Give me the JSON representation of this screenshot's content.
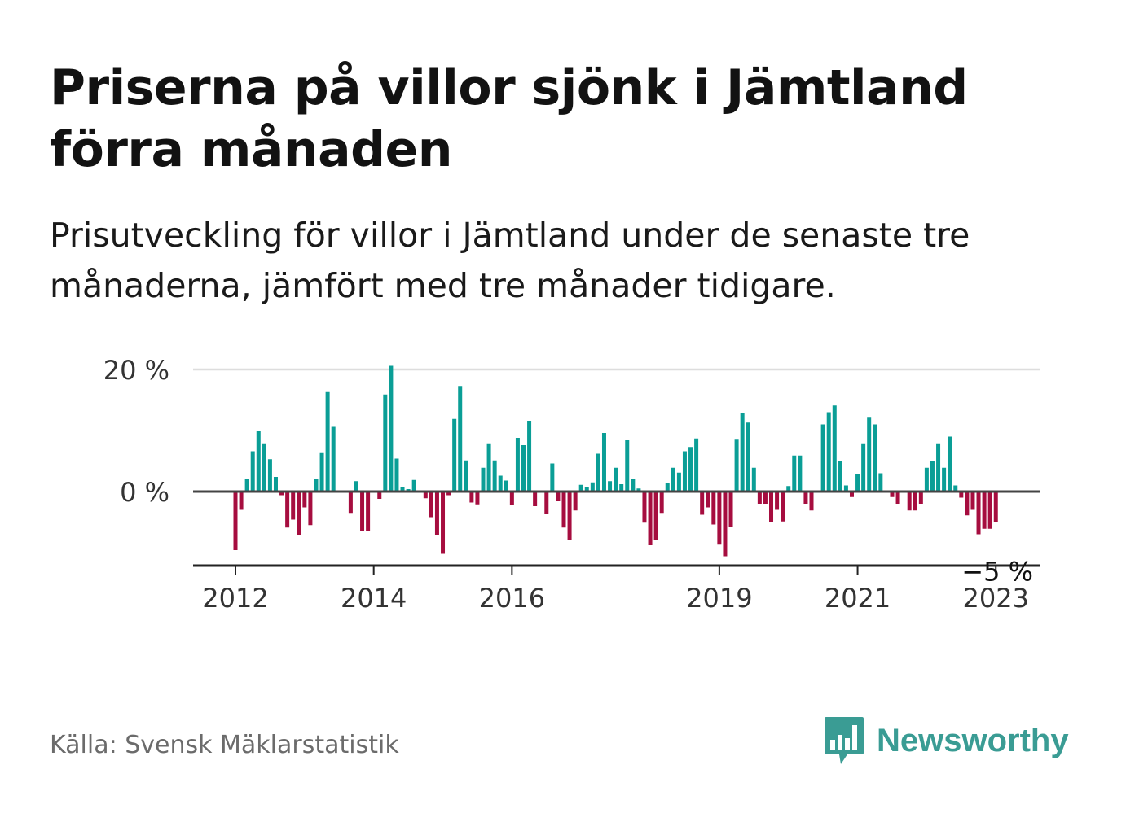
{
  "title": "Priserna på villor sjönk i Jämtland förra månaden",
  "subtitle": "Prisutveckling för villor i Jämtland under de senaste tre månaderna, jämfört med tre månader tidigare.",
  "source": "Källa: Svensk Mäklarstatistik",
  "logo": {
    "text": "Newsworthy",
    "icon": "bar-chart-speech-bubble-icon"
  },
  "colors": {
    "positive": "#0a9e96",
    "negative": "#a60d3f",
    "grid": "#dddddd",
    "axis": "#444444",
    "logo": "#3a9c94"
  },
  "chart_data": {
    "type": "bar",
    "title": "",
    "xlabel": "",
    "ylabel": "",
    "ylim": [
      -12,
      20
    ],
    "y_ticks": [
      {
        "value": 0,
        "label": "0 %"
      },
      {
        "value": 20,
        "label": "20 %"
      }
    ],
    "x_ticks": [
      {
        "index": 0,
        "label": "2012"
      },
      {
        "index": 24,
        "label": "2014"
      },
      {
        "index": 48,
        "label": "2016"
      },
      {
        "index": 84,
        "label": "2019"
      },
      {
        "index": 108,
        "label": "2021"
      },
      {
        "index": 132,
        "label": "2023"
      }
    ],
    "end_label": "−5 %",
    "start": "2012-01",
    "values": [
      -9.6,
      -3.0,
      2.1,
      6.6,
      10.0,
      7.9,
      5.3,
      2.4,
      -0.6,
      -5.9,
      -4.6,
      -7.1,
      -2.6,
      -5.5,
      2.1,
      6.3,
      16.3,
      10.6,
      0.0,
      0.0,
      -3.5,
      1.7,
      -6.4,
      -6.4,
      0.0,
      -1.2,
      15.9,
      20.6,
      5.4,
      0.7,
      0.4,
      1.9,
      0.0,
      -1.1,
      -4.2,
      -7.1,
      -10.2,
      -0.6,
      11.9,
      17.3,
      5.1,
      -1.8,
      -2.1,
      3.9,
      7.9,
      5.1,
      2.6,
      1.8,
      -2.2,
      8.8,
      7.6,
      11.6,
      -2.4,
      0.0,
      -3.7,
      4.6,
      -1.6,
      -5.9,
      -8.0,
      -3.1,
      1.1,
      0.7,
      1.5,
      6.2,
      9.6,
      1.7,
      3.9,
      1.2,
      8.4,
      2.1,
      0.5,
      -5.1,
      -8.8,
      -8.0,
      -3.5,
      1.4,
      3.9,
      3.1,
      6.6,
      7.3,
      8.7,
      -3.8,
      -2.6,
      -5.4,
      -8.7,
      -10.6,
      -5.8,
      8.5,
      12.8,
      11.3,
      3.9,
      -2.0,
      -2.0,
      -5.0,
      -3.0,
      -4.9,
      0.9,
      5.9,
      5.9,
      -2.0,
      -3.1,
      0.0,
      11.0,
      13.0,
      14.1,
      5.0,
      1.0,
      -0.9,
      2.9,
      7.9,
      12.1,
      11.0,
      3.0,
      0.0,
      -0.9,
      -2.0,
      0.0,
      -3.1,
      -3.1,
      -2.0,
      3.9,
      5.0,
      7.9,
      3.9,
      9.0,
      1.0,
      -1.0,
      -3.9,
      -3.0,
      -7.0,
      -6.1,
      -6.1,
      -5.0
    ]
  }
}
